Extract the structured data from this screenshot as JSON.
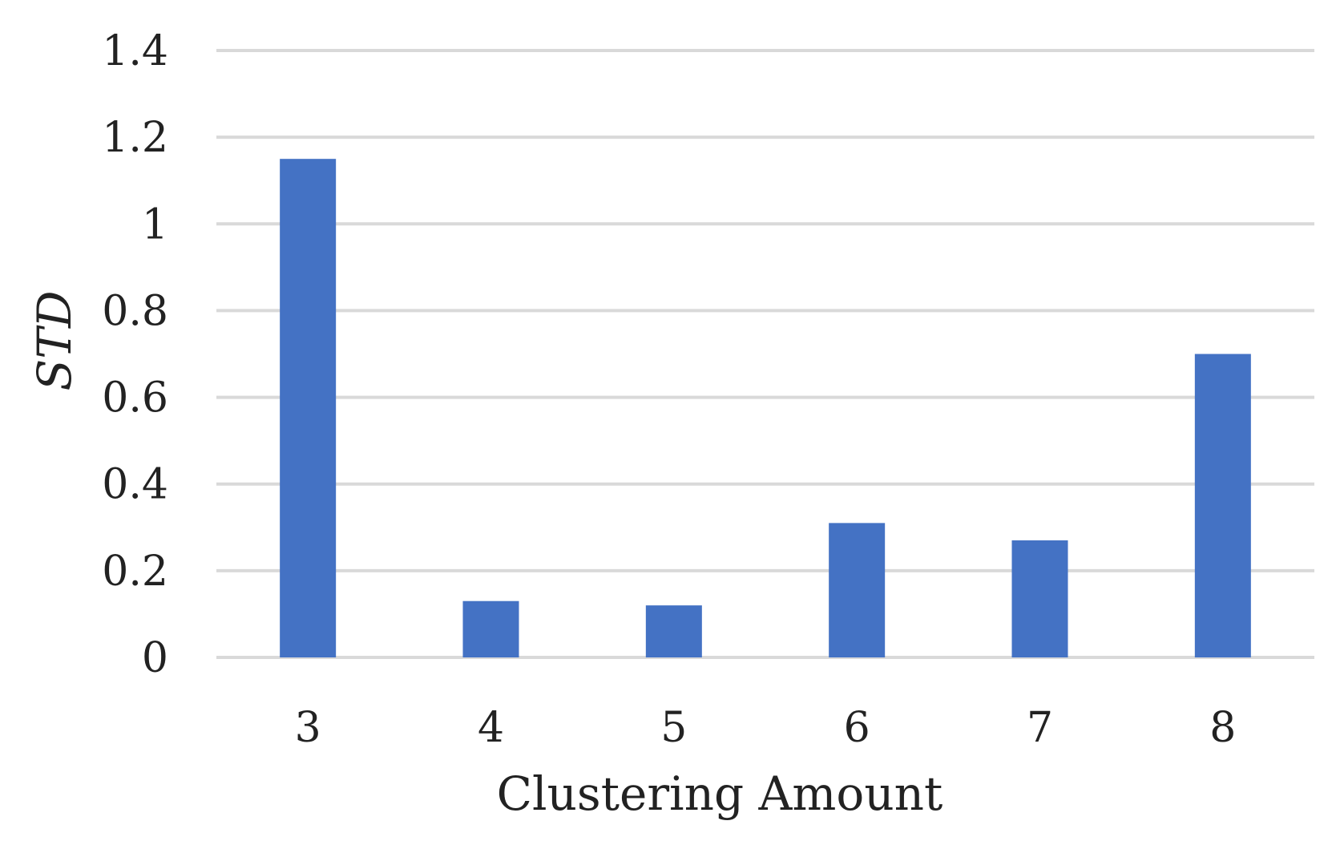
{
  "chart_data": {
    "type": "bar",
    "categories": [
      "3",
      "4",
      "5",
      "6",
      "7",
      "8"
    ],
    "values": [
      1.15,
      0.13,
      0.12,
      0.31,
      0.27,
      0.7
    ],
    "xlabel": "Clustering Amount",
    "ylabel": "STD",
    "ylim": [
      0,
      1.4
    ],
    "yticks": [
      "0",
      "0.2",
      "0.4",
      "0.6",
      "0.8",
      "1",
      "1.2",
      "1.4"
    ],
    "grid": true,
    "legend": "none",
    "colors": {
      "bar": "#4472c4",
      "grid": "#d9d9d9",
      "text": "#222222"
    }
  }
}
